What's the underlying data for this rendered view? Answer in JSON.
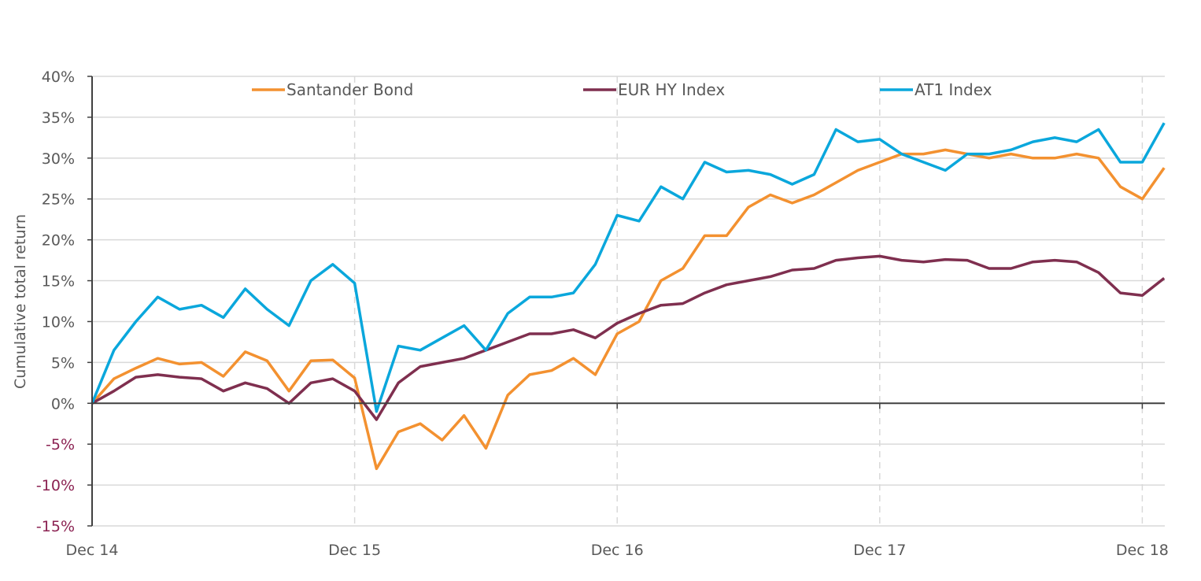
{
  "chart_data": {
    "type": "line",
    "title": "",
    "xlabel": "",
    "ylabel": "Cumulative total return",
    "ylim": [
      -15,
      40
    ],
    "y_ticks": [
      -15,
      -10,
      -5,
      0,
      5,
      10,
      15,
      20,
      25,
      30,
      35,
      40
    ],
    "y_tick_labels": [
      "-15%",
      "-10%",
      "-5%",
      "0%",
      "5%",
      "10%",
      "15%",
      "20%",
      "25%",
      "30%",
      "35%",
      "40%"
    ],
    "x_ticks": [
      "2014-12",
      "2015-12",
      "2016-12",
      "2017-12",
      "2018-12"
    ],
    "x_tick_labels": [
      "Dec 14",
      "Dec 15",
      "Dec 16",
      "Dec 17",
      "Dec 18"
    ],
    "grid": "horizontal gridlines, dashed vertical lines at year ticks",
    "legend_position": "top",
    "negative_label_color": "#8b2252",
    "x": [
      "2014-12",
      "2015-01",
      "2015-02",
      "2015-03",
      "2015-04",
      "2015-05",
      "2015-06",
      "2015-07",
      "2015-08",
      "2015-09",
      "2015-10",
      "2015-11",
      "2015-12",
      "2016-01",
      "2016-02",
      "2016-03",
      "2016-04",
      "2016-05",
      "2016-06",
      "2016-07",
      "2016-08",
      "2016-09",
      "2016-10",
      "2016-11",
      "2016-12",
      "2017-01",
      "2017-02",
      "2017-03",
      "2017-04",
      "2017-05",
      "2017-06",
      "2017-07",
      "2017-08",
      "2017-09",
      "2017-10",
      "2017-11",
      "2017-12",
      "2018-01",
      "2018-02",
      "2018-03",
      "2018-04",
      "2018-05",
      "2018-06",
      "2018-07",
      "2018-08",
      "2018-09",
      "2018-10",
      "2018-11",
      "2018-12",
      "2019-01"
    ],
    "series": [
      {
        "name": "Santander Bond",
        "color": "#f39130",
        "values": [
          0,
          3,
          4.3,
          5.5,
          4.8,
          5,
          3.3,
          6.3,
          5.2,
          1.5,
          5.2,
          5.3,
          3.1,
          -8,
          -3.5,
          -2.5,
          -4.5,
          -1.5,
          -5.5,
          1,
          3.5,
          4,
          5.5,
          3.5,
          8.5,
          10,
          15,
          16.5,
          20.5,
          20.5,
          24,
          25.5,
          24.5,
          25.5,
          27,
          28.5,
          29.5,
          30.5,
          30.5,
          31,
          30.5,
          30,
          30.5,
          30,
          30,
          30.5,
          30,
          26.5,
          25,
          28.8
        ]
      },
      {
        "name": "EUR HY Index",
        "color": "#7f2f4f",
        "values": [
          0,
          1.5,
          3.2,
          3.5,
          3.2,
          3,
          1.5,
          2.5,
          1.8,
          0,
          2.5,
          3,
          1.5,
          -2,
          2.5,
          4.5,
          5,
          5.5,
          6.5,
          7.5,
          8.5,
          8.5,
          9,
          8,
          9.8,
          11,
          12,
          12.2,
          13.5,
          14.5,
          15,
          15.5,
          16.3,
          16.5,
          17.5,
          17.8,
          18,
          17.5,
          17.3,
          17.6,
          17.5,
          16.5,
          16.5,
          17.3,
          17.5,
          17.3,
          16,
          13.5,
          13.2,
          15.3
        ]
      },
      {
        "name": "AT1 Index",
        "color": "#0aa7dc",
        "values": [
          0,
          6.5,
          10,
          13,
          11.5,
          12,
          10.5,
          14,
          11.5,
          9.5,
          15,
          17,
          14.7,
          -1,
          7,
          6.5,
          8,
          9.5,
          6.5,
          11,
          13,
          13,
          13.5,
          17,
          23,
          22.3,
          26.5,
          25,
          29.5,
          28.3,
          28.5,
          28,
          26.8,
          28,
          33.5,
          32,
          32.3,
          30.5,
          29.5,
          28.5,
          30.5,
          30.5,
          31,
          32,
          32.5,
          32,
          33.5,
          29.5,
          29.5,
          34.3
        ]
      }
    ]
  }
}
